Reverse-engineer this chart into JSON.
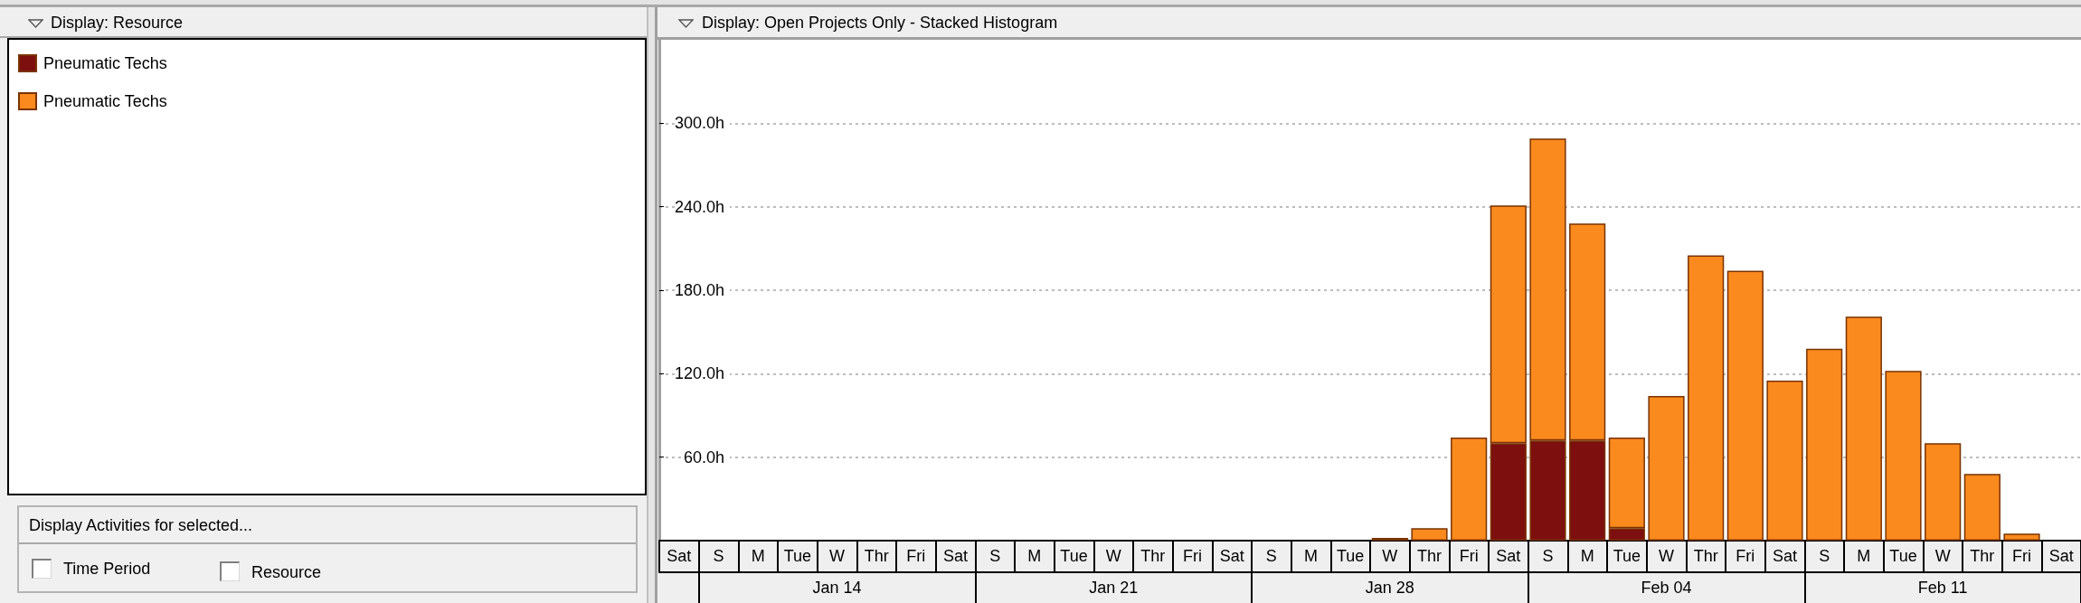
{
  "chart_data": {
    "type": "bar",
    "stacked": true,
    "title": "Display: Open Projects Only - Stacked Histogram",
    "legend_title": "Display: Resource",
    "categories": [
      "Sat",
      "S",
      "M",
      "Tue",
      "W",
      "Thr",
      "Fri",
      "Sat",
      "S",
      "M",
      "Tue",
      "W",
      "Thr",
      "Fri",
      "Sat",
      "S",
      "M",
      "Tue",
      "W",
      "Thr",
      "Fri",
      "Sat",
      "S",
      "M",
      "Tue",
      "W",
      "Thr",
      "Fri",
      "Sat",
      "S",
      "M",
      "Tue",
      "W",
      "Thr",
      "Fri",
      "Sat"
    ],
    "series": [
      {
        "name": "Pneumatic Techs",
        "color": "#7d0f0f",
        "values": [
          null,
          null,
          null,
          null,
          null,
          null,
          null,
          null,
          null,
          null,
          null,
          null,
          null,
          null,
          null,
          null,
          null,
          null,
          null,
          null,
          null,
          70,
          72,
          72,
          9,
          null,
          null,
          null,
          null,
          null,
          null,
          null,
          null,
          null,
          null,
          null
        ]
      },
      {
        "name": "Pneumatic Techs",
        "color": "#fb8a1e",
        "values": [
          null,
          null,
          null,
          null,
          null,
          null,
          null,
          null,
          null,
          null,
          null,
          null,
          null,
          null,
          null,
          null,
          null,
          null,
          2,
          9,
          74,
          171,
          217,
          156,
          65,
          104,
          205,
          194,
          115,
          138,
          161,
          122,
          70,
          48,
          5,
          null
        ]
      }
    ],
    "ylim": [
      0,
      360
    ],
    "yticks": [
      {
        "value": 60,
        "label": "60.0h"
      },
      {
        "value": 120,
        "label": "120.0h"
      },
      {
        "value": 180,
        "label": "180.0h"
      },
      {
        "value": 240,
        "label": "240.0h"
      },
      {
        "value": 300,
        "label": "300.0h"
      }
    ],
    "grid": "y",
    "legend": "top left",
    "annotations": [
      "Display Activities for selected...",
      "Time Period",
      "Resource",
      "Jan 14",
      "Jan 21",
      "Jan 28",
      "Feb 04",
      "Feb 11"
    ]
  }
}
